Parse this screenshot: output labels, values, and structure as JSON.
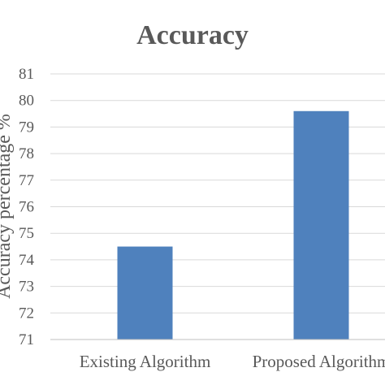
{
  "chart_data": {
    "type": "bar",
    "title": "Accuracy",
    "ylabel": "Accuracy percentage %",
    "xlabel": "",
    "categories": [
      "Existing Algorithm",
      "Proposed Algorithm"
    ],
    "values": [
      74.5,
      79.6
    ],
    "ylim": [
      71,
      81
    ],
    "yticks": [
      71,
      72,
      73,
      74,
      75,
      76,
      77,
      78,
      79,
      80,
      81
    ],
    "grid": true,
    "bar_color": "#4f81bd",
    "text_color": "#595959",
    "grid_color": "#d9d9d9"
  }
}
